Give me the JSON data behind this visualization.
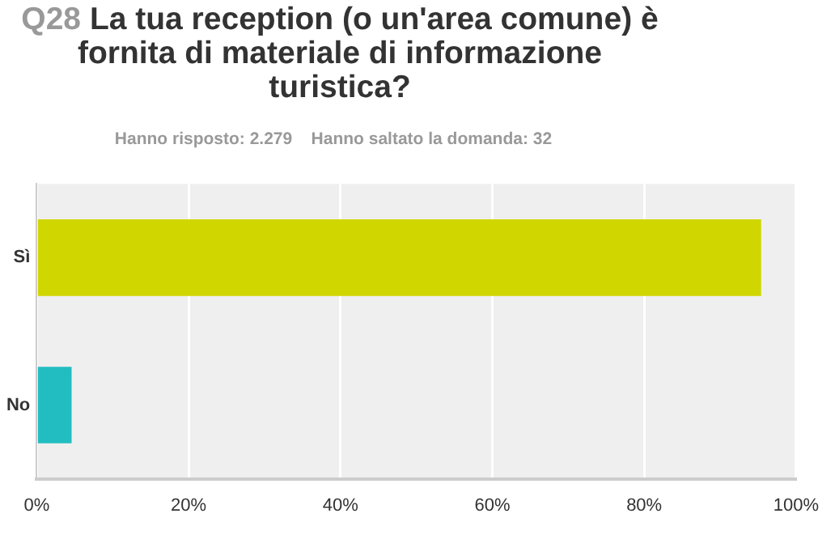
{
  "chart_data": {
    "type": "bar",
    "orientation": "horizontal",
    "title": "Q28 La tua reception (o un'area comune) è fornita di materiale di informazione turistica?",
    "subtitle": "Hanno risposto: 2.279    Hanno saltato la domanda: 32",
    "categories": [
      "Sì",
      "No"
    ],
    "values": [
      95.4,
      4.6
    ],
    "colors": [
      "#d0d600",
      "#22bdc1"
    ],
    "xlim": [
      0,
      100
    ],
    "xticks": [
      {
        "value": 0,
        "label": "0%"
      },
      {
        "value": 20,
        "label": "20%"
      },
      {
        "value": 40,
        "label": "40%"
      },
      {
        "value": 60,
        "label": "60%"
      },
      {
        "value": 80,
        "label": "80%"
      },
      {
        "value": 100,
        "label": "100%"
      }
    ],
    "grid": "x",
    "legend": false
  }
}
